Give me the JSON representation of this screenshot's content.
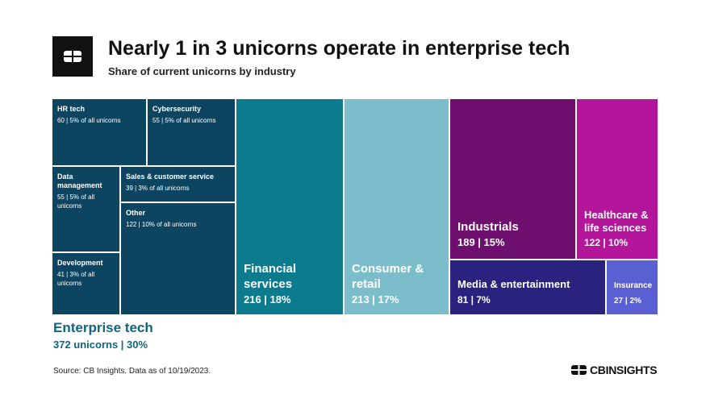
{
  "chart_data": {
    "type": "treemap",
    "title": "Nearly 1 in 3 unicorns operate in enterprise tech",
    "subtitle": "Share of current unicorns by industry",
    "categories": [
      "Enterprise tech",
      "Financial services",
      "Consumer & retail",
      "Industrials",
      "Healthcare & life sciences",
      "Media & entertainment",
      "Insurance"
    ],
    "values": [
      372,
      216,
      213,
      189,
      122,
      81,
      27
    ],
    "value_labels": [
      "372 unicorns | 30%",
      "216 | 18%",
      "213 | 17%",
      "189 | 15%",
      "122 | 10%",
      "81 | 7%",
      "27 | 2%"
    ],
    "colors": [
      "#0d4561",
      "#0b7b8d",
      "#7cbdcb",
      "#6e0f6f",
      "#b3169b",
      "#29227e",
      "#5a5fd2"
    ],
    "children": {
      "parent": "Enterprise tech",
      "categories": [
        "HR tech",
        "Cybersecurity",
        "Data management",
        "Sales & customer service",
        "Other",
        "Development"
      ],
      "values": [
        60,
        55,
        55,
        39,
        122,
        41
      ],
      "value_labels": [
        "60 | 5% of all unicorns",
        "55 | 5% of all unicorns",
        "55 | 5% of all unicorns",
        "39 | 3% of all unicorns",
        "122 | 10% of all unicorns",
        "41 | 3% of all unicorns"
      ]
    },
    "source": "Source: CB Insights. Data as of 10/19/2023.",
    "brand": "CBINSIGHTS"
  }
}
